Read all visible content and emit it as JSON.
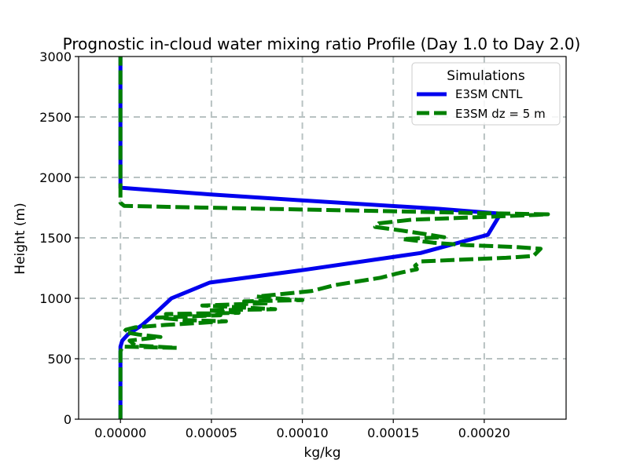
{
  "chart_data": {
    "type": "line",
    "title": "Prognostic in-cloud water mixing ratio Profile (Day 1.0 to Day 2.0)",
    "xlabel": "kg/kg",
    "ylabel": "Height (m)",
    "xlim": [
      -2.3e-05,
      0.000245
    ],
    "ylim": [
      0,
      3000
    ],
    "xticks": [
      0.0,
      5e-05,
      0.0001,
      0.00015,
      0.0002
    ],
    "xtick_labels": [
      "0.00000",
      "0.00005",
      "0.00010",
      "0.00015",
      "0.00020"
    ],
    "yticks": [
      0,
      500,
      1000,
      1500,
      2000,
      2500,
      3000
    ],
    "ytick_labels": [
      "0",
      "500",
      "1000",
      "1500",
      "2000",
      "2500",
      "3000"
    ],
    "grid": true,
    "legend": {
      "title": "Simulations",
      "position": "top-right"
    },
    "series": [
      {
        "name": "E3SM CNTL",
        "color": "#0000ee",
        "style": "solid",
        "points": [
          [
            0.0,
            0
          ],
          [
            0.0,
            300
          ],
          [
            0.0,
            600
          ],
          [
            1e-06,
            650
          ],
          [
            4e-06,
            700
          ],
          [
            1.2e-05,
            780
          ],
          [
            1.8e-05,
            860
          ],
          [
            2.8e-05,
            1000
          ],
          [
            4.9e-05,
            1130
          ],
          [
            0.000101,
            1235
          ],
          [
            0.000165,
            1375
          ],
          [
            0.000202,
            1525
          ],
          [
            0.000209,
            1700
          ],
          [
            0.000175,
            1740
          ],
          [
            0.0001,
            1810
          ],
          [
            4.9e-05,
            1860
          ],
          [
            0.0,
            1915
          ],
          [
            0.0,
            2200
          ],
          [
            0.0,
            2600
          ],
          [
            0.0,
            3000
          ]
        ]
      },
      {
        "name": "E3SM dz = 5 m",
        "color": "#008000",
        "style": "dashed",
        "points": [
          [
            0.0,
            0
          ],
          [
            0.0,
            300
          ],
          [
            0.0,
            560
          ],
          [
            1e-06,
            600
          ],
          [
            3.1e-05,
            590
          ],
          [
            8e-06,
            610
          ],
          [
            5e-06,
            650
          ],
          [
            2.2e-05,
            680
          ],
          [
            1e-05,
            700
          ],
          [
            2e-06,
            720
          ],
          [
            3e-06,
            740
          ],
          [
            8e-06,
            760
          ],
          [
            2.5e-05,
            780
          ],
          [
            5.8e-05,
            810
          ],
          [
            3.5e-05,
            820
          ],
          [
            2e-05,
            840
          ],
          [
            5.5e-05,
            860
          ],
          [
            2.5e-05,
            870
          ],
          [
            6.5e-05,
            880
          ],
          [
            4.8e-05,
            900
          ],
          [
            8.5e-05,
            910
          ],
          [
            6e-05,
            930
          ],
          [
            4.5e-05,
            940
          ],
          [
            8.2e-05,
            960
          ],
          [
            6.8e-05,
            975
          ],
          [
            0.0001,
            985
          ],
          [
            8.5e-05,
            1000
          ],
          [
            7.5e-05,
            1015
          ],
          [
            0.000105,
            1060
          ],
          [
            0.000118,
            1110
          ],
          [
            0.000143,
            1170
          ],
          [
            0.000152,
            1205
          ],
          [
            0.000163,
            1240
          ],
          [
            0.000162,
            1270
          ],
          [
            0.000165,
            1305
          ],
          [
            0.000212,
            1335
          ],
          [
            0.000227,
            1350
          ],
          [
            0.000231,
            1410
          ],
          [
            0.000217,
            1425
          ],
          [
            0.00019,
            1440
          ],
          [
            0.000172,
            1460
          ],
          [
            0.000155,
            1490
          ],
          [
            0.000178,
            1505
          ],
          [
            0.000168,
            1530
          ],
          [
            0.000155,
            1560
          ],
          [
            0.00014,
            1590
          ],
          [
            0.000142,
            1620
          ],
          [
            0.00016,
            1650
          ],
          [
            0.000195,
            1670
          ],
          [
            0.000229,
            1690
          ],
          [
            0.000235,
            1695
          ],
          [
            0.000195,
            1705
          ],
          [
            0.00015,
            1720
          ],
          [
            8e-05,
            1740
          ],
          [
            3e-05,
            1755
          ],
          [
            2e-06,
            1765
          ],
          [
            0.0,
            1790
          ],
          [
            0.0,
            1850
          ],
          [
            0.0,
            2200
          ],
          [
            0.0,
            2600
          ],
          [
            0.0,
            3000
          ]
        ]
      }
    ]
  }
}
